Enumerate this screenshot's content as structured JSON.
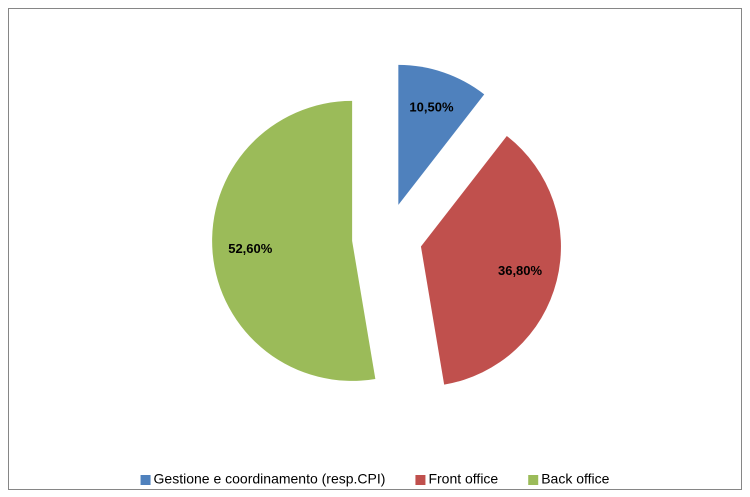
{
  "chart_data": {
    "type": "pie",
    "categories": [
      "Gestione e coordinamento (resp.CPI)",
      "Front office",
      "Back office"
    ],
    "values": [
      10.5,
      36.8,
      52.6
    ],
    "value_labels": [
      "10,50%",
      "36,80%",
      "52,60%"
    ],
    "colors": [
      "#4f81bd",
      "#c0504d",
      "#9bbb59"
    ],
    "exploded": true,
    "legend": "bottom"
  }
}
